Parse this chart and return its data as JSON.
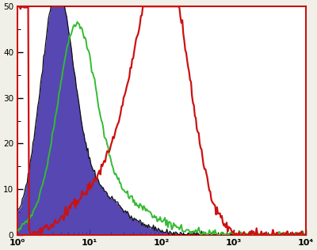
{
  "xlim": [
    1,
    10000
  ],
  "ylim": [
    0,
    50
  ],
  "yticks": [
    0,
    10,
    20,
    30,
    40,
    50
  ],
  "xtick_positions": [
    1,
    10,
    100,
    1000,
    10000
  ],
  "xtick_labels": [
    "10⁰",
    "10¹",
    "10²",
    "10³",
    "10⁴"
  ],
  "background_color": "#f0f0e8",
  "plot_bg": "#ffffff",
  "purple_color": "#4433aa",
  "black_color": "#111111",
  "green_color": "#33bb33",
  "red_color": "#cc1111",
  "border_color": "#cc1111",
  "n_bins": 300,
  "log_xmin": 0.0,
  "log_xmax": 4.0
}
